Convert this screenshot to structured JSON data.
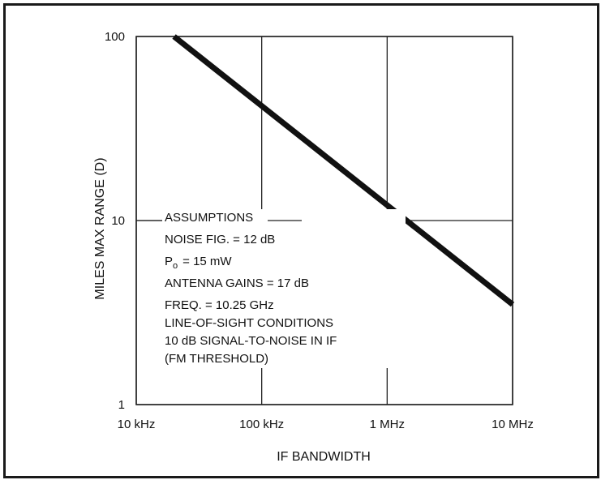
{
  "chart_data": {
    "type": "line",
    "title": "",
    "xlabel": "IF BANDWIDTH",
    "ylabel": "MILES MAX RANGE (D)",
    "x_scale": "log",
    "y_scale": "log",
    "xlim": [
      "10 kHz",
      "10 MHz"
    ],
    "ylim": [
      1,
      100
    ],
    "x_ticks": [
      "10 kHz",
      "100 kHz",
      "1 MHz",
      "10 MHz"
    ],
    "y_ticks": [
      "100",
      "10",
      "1"
    ],
    "grid": "major",
    "series": [
      {
        "points": [
          {
            "x": "20 kHz",
            "y": 100
          },
          {
            "x": "10 MHz",
            "y": 3.5
          }
        ]
      }
    ],
    "annotation": {
      "heading": "ASSUMPTIONS",
      "lines": [
        "NOISE FIG. = 12 dB",
        "ANTENNA GAINS = 17 dB",
        "FREQ. = 10.25 GHz",
        "LINE-OF-SIGHT CONDITIONS",
        "10 dB SIGNAL-TO-NOISE IN IF",
        "(FM THRESHOLD)"
      ],
      "power_symbol": "P",
      "power_subscript": "o",
      "power_value": "= 15 mW"
    }
  },
  "colors": {
    "line": "#111111",
    "grid": "#222222",
    "frame": "#1a1a1a",
    "background": "#ffffff"
  }
}
